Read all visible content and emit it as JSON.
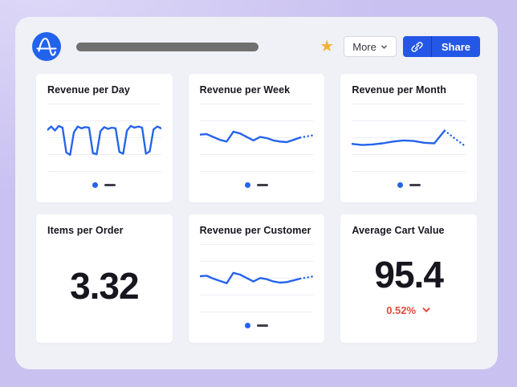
{
  "colors": {
    "background": "#c9c1f0",
    "bg_light": "#ded9f8",
    "panel": "#eff1f7",
    "card": "#ffffff",
    "accent_blue": "#2563eb",
    "share_blue": "#2457e6",
    "star_gold": "#f2b237",
    "negative_red": "#e8473c",
    "title_text": "#17161f",
    "legend_dash": "#3f3f49",
    "grid_line": "#eceef3",
    "title_bar_gray": "#707070"
  },
  "header": {
    "logo": "amplitude-logo",
    "more_label": "More",
    "share_label": "Share"
  },
  "cards": [
    {
      "title": "Revenue per Day",
      "kind": "line-chart"
    },
    {
      "title": "Revenue per Week",
      "kind": "line-chart"
    },
    {
      "title": "Revenue per Month",
      "kind": "line-chart"
    },
    {
      "title": "Items per Order",
      "kind": "metric",
      "value": "3.32"
    },
    {
      "title": "Revenue per Customer",
      "kind": "line-chart"
    },
    {
      "title": "Average Cart Value",
      "kind": "metric",
      "value": "95.4",
      "change": "0.52%",
      "change_direction": "down"
    }
  ],
  "chart_data": [
    {
      "type": "line",
      "title": "Revenue per Day",
      "values": [
        64,
        70,
        63,
        71,
        68,
        25,
        21,
        60,
        70,
        67,
        69,
        68,
        24,
        22,
        62,
        69,
        66,
        68,
        67,
        26,
        23,
        63,
        71,
        68,
        70,
        68,
        23,
        27,
        65,
        70,
        67
      ],
      "dotted_from": null,
      "ylim": [
        0,
        100
      ],
      "axes_shown": false,
      "grid": "horizontal",
      "line_color": "#2563eb"
    },
    {
      "type": "line",
      "title": "Revenue per Week",
      "values": [
        56,
        57,
        52,
        47,
        44,
        61,
        58,
        52,
        46,
        52,
        50,
        46,
        44,
        43,
        47,
        51,
        53,
        55
      ],
      "dotted_from": 15,
      "ylim": [
        0,
        100
      ],
      "axes_shown": false,
      "grid": "horizontal",
      "line_color": "#2563eb"
    },
    {
      "type": "line",
      "title": "Revenue per Month",
      "values": [
        40,
        38,
        39,
        41,
        44,
        46,
        45,
        42,
        41,
        63,
        49,
        36
      ],
      "dotted_from": 9,
      "ylim": [
        0,
        100
      ],
      "axes_shown": false,
      "grid": "horizontal",
      "line_color": "#2563eb"
    },
    {
      "type": "line",
      "title": "Revenue per Customer",
      "values": [
        54,
        55,
        50,
        46,
        42,
        60,
        57,
        51,
        45,
        51,
        49,
        45,
        43,
        44,
        47,
        50,
        52,
        54
      ],
      "dotted_from": 15,
      "ylim": [
        0,
        100
      ],
      "axes_shown": false,
      "grid": "horizontal",
      "line_color": "#2563eb"
    }
  ]
}
